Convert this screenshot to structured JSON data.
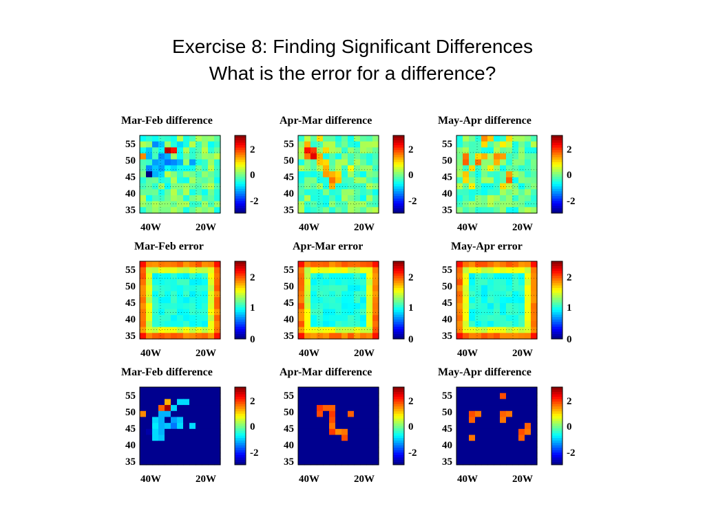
{
  "slide": {
    "title_line1": "Exercise 8: Finding Significant Differences",
    "title_line2": "What is the error for a difference?"
  },
  "colormap": "jet",
  "chart_data": [
    {
      "type": "heatmap",
      "title": "Mar-Feb difference",
      "ytick_labels": [
        "55",
        "50",
        "45",
        "40",
        "35"
      ],
      "xtick_labels": [
        "40W",
        "20W"
      ],
      "colorbar_ticks": [
        "2",
        "0",
        "-2"
      ],
      "background": "field",
      "anomalies": [
        {
          "r": 1,
          "c": 2,
          "v": -1.2
        },
        {
          "r": 1,
          "c": 3,
          "v": -0.9
        },
        {
          "r": 1,
          "c": 6,
          "v": -0.8
        },
        {
          "r": 2,
          "c": 1,
          "v": -0.9
        },
        {
          "r": 2,
          "c": 3,
          "v": -0.6
        },
        {
          "r": 2,
          "c": 4,
          "v": 2.2
        },
        {
          "r": 2,
          "c": 5,
          "v": 1.8
        },
        {
          "r": 3,
          "c": 0,
          "v": 1.2
        },
        {
          "r": 3,
          "c": 1,
          "v": -1.0
        },
        {
          "r": 3,
          "c": 3,
          "v": -1.2
        },
        {
          "r": 3,
          "c": 4,
          "v": -1.0
        },
        {
          "r": 4,
          "c": 2,
          "v": -1.1
        },
        {
          "r": 4,
          "c": 3,
          "v": -1.0
        },
        {
          "r": 4,
          "c": 4,
          "v": -1.3
        },
        {
          "r": 4,
          "c": 5,
          "v": -1.2
        },
        {
          "r": 4,
          "c": 6,
          "v": -1.0
        },
        {
          "r": 4,
          "c": 8,
          "v": -1.1
        },
        {
          "r": 5,
          "c": 1,
          "v": -1.2
        },
        {
          "r": 5,
          "c": 2,
          "v": -0.9
        },
        {
          "r": 5,
          "c": 3,
          "v": -1.1
        },
        {
          "r": 5,
          "c": 4,
          "v": -0.6
        },
        {
          "r": 5,
          "c": 5,
          "v": -0.8
        },
        {
          "r": 5,
          "c": 7,
          "v": -0.6
        },
        {
          "r": 6,
          "c": 1,
          "v": -2.5
        },
        {
          "r": 6,
          "c": 2,
          "v": -1.0
        },
        {
          "r": 6,
          "c": 3,
          "v": -0.8
        },
        {
          "r": 7,
          "c": 3,
          "v": -0.5
        },
        {
          "r": 7,
          "c": 4,
          "v": -0.4
        },
        {
          "r": 8,
          "c": 2,
          "v": -0.4
        }
      ]
    },
    {
      "type": "heatmap",
      "title": "Apr-Mar difference",
      "ytick_labels": [
        "55",
        "50",
        "45",
        "40",
        "35"
      ],
      "xtick_labels": [
        "40W",
        "20W"
      ],
      "colorbar_ticks": [
        "2",
        "-2",
        "0"
      ],
      "background": "field",
      "anomalies": [
        {
          "r": 0,
          "c": 3,
          "v": 0.8
        },
        {
          "r": 1,
          "c": 1,
          "v": 1.0
        },
        {
          "r": 2,
          "c": 1,
          "v": 1.8
        },
        {
          "r": 2,
          "c": 2,
          "v": 1.6
        },
        {
          "r": 2,
          "c": 4,
          "v": 0.8
        },
        {
          "r": 3,
          "c": 1,
          "v": 1.3
        },
        {
          "r": 3,
          "c": 2,
          "v": 2.0
        },
        {
          "r": 3,
          "c": 3,
          "v": 1.0
        },
        {
          "r": 4,
          "c": 3,
          "v": 0.9
        },
        {
          "r": 4,
          "c": 4,
          "v": 0.8
        },
        {
          "r": 5,
          "c": 4,
          "v": 1.0
        },
        {
          "r": 5,
          "c": 8,
          "v": 0.6
        },
        {
          "r": 6,
          "c": 4,
          "v": 1.1
        },
        {
          "r": 6,
          "c": 5,
          "v": 1.0
        },
        {
          "r": 6,
          "c": 6,
          "v": 0.8
        },
        {
          "r": 7,
          "c": 5,
          "v": 1.3
        },
        {
          "r": 7,
          "c": 6,
          "v": 0.9
        },
        {
          "r": 8,
          "c": 5,
          "v": 1.0
        },
        {
          "r": 2,
          "c": 7,
          "v": -0.4
        },
        {
          "r": 4,
          "c": 8,
          "v": -0.3
        },
        {
          "r": 8,
          "c": 8,
          "v": -0.3
        }
      ]
    },
    {
      "type": "heatmap",
      "title": "May-Apr difference",
      "ytick_labels": [
        "55",
        "50",
        "45",
        "40",
        "35"
      ],
      "xtick_labels": [
        "40W",
        "20W"
      ],
      "colorbar_ticks": [
        "2",
        "0",
        "-2"
      ],
      "background": "field",
      "anomalies": [
        {
          "r": 0,
          "c": 4,
          "v": 1.2
        },
        {
          "r": 0,
          "c": 5,
          "v": 0.9
        },
        {
          "r": 0,
          "c": 8,
          "v": 0.8
        },
        {
          "r": 1,
          "c": 4,
          "v": 0.8
        },
        {
          "r": 1,
          "c": 7,
          "v": 0.7
        },
        {
          "r": 3,
          "c": 1,
          "v": 1.3
        },
        {
          "r": 3,
          "c": 3,
          "v": 0.8
        },
        {
          "r": 3,
          "c": 4,
          "v": 1.0
        },
        {
          "r": 3,
          "c": 6,
          "v": 1.2
        },
        {
          "r": 3,
          "c": 7,
          "v": 1.1
        },
        {
          "r": 4,
          "c": 1,
          "v": 1.4
        },
        {
          "r": 4,
          "c": 3,
          "v": 1.3
        },
        {
          "r": 4,
          "c": 6,
          "v": 1.0
        },
        {
          "r": 5,
          "c": 2,
          "v": 0.8
        },
        {
          "r": 5,
          "c": 5,
          "v": 0.7
        },
        {
          "r": 6,
          "c": 1,
          "v": 0.9
        },
        {
          "r": 6,
          "c": 8,
          "v": 1.1
        },
        {
          "r": 7,
          "c": 1,
          "v": 0.8
        },
        {
          "r": 7,
          "c": 8,
          "v": 1.4
        },
        {
          "r": 8,
          "c": 2,
          "v": 0.7
        },
        {
          "r": 8,
          "c": 7,
          "v": 0.8
        }
      ]
    },
    {
      "type": "heatmap",
      "title": "Mar-Feb error",
      "ytick_labels": [
        "55",
        "50",
        "45",
        "40",
        "35"
      ],
      "xtick_labels": [
        "40W",
        "20W"
      ],
      "colorbar_ticks": [
        "2",
        "1",
        "0"
      ],
      "background": "error"
    },
    {
      "type": "heatmap",
      "title": "Apr-Mar error",
      "ytick_labels": [
        "55",
        "50",
        "45",
        "40",
        "35"
      ],
      "xtick_labels": [
        "40W",
        "20W"
      ],
      "colorbar_ticks": [
        "2",
        "1",
        "0"
      ],
      "background": "error"
    },
    {
      "type": "heatmap",
      "title": "May-Apr error",
      "ytick_labels": [
        "55",
        "50",
        "45",
        "40",
        "35"
      ],
      "xtick_labels": [
        "40W",
        "20W"
      ],
      "colorbar_ticks": [
        "2",
        "1",
        "0"
      ],
      "background": "error"
    },
    {
      "type": "heatmap",
      "title": "Mar-Feb difference",
      "ytick_labels": [
        "55",
        "50",
        "45",
        "40",
        "35"
      ],
      "xtick_labels": [
        "40W",
        "20W"
      ],
      "colorbar_ticks": [
        "2",
        "0",
        "-2"
      ],
      "background": "masked",
      "anomalies": [
        {
          "r": 2,
          "c": 4,
          "v": 1.0
        },
        {
          "r": 2,
          "c": 6,
          "v": -0.8
        },
        {
          "r": 2,
          "c": 7,
          "v": -0.8
        },
        {
          "r": 3,
          "c": 3,
          "v": 1.4
        },
        {
          "r": 3,
          "c": 4,
          "v": 2.3
        },
        {
          "r": 3,
          "c": 5,
          "v": -0.8
        },
        {
          "r": 4,
          "c": 0,
          "v": 1.2
        },
        {
          "r": 4,
          "c": 3,
          "v": -1.0
        },
        {
          "r": 4,
          "c": 4,
          "v": -1.0
        },
        {
          "r": 5,
          "c": 2,
          "v": -0.8
        },
        {
          "r": 5,
          "c": 3,
          "v": -1.0
        },
        {
          "r": 5,
          "c": 5,
          "v": -1.1
        },
        {
          "r": 5,
          "c": 6,
          "v": -0.9
        },
        {
          "r": 6,
          "c": 2,
          "v": -0.7
        },
        {
          "r": 6,
          "c": 3,
          "v": -1.0
        },
        {
          "r": 6,
          "c": 4,
          "v": -0.9
        },
        {
          "r": 6,
          "c": 5,
          "v": -1.3
        },
        {
          "r": 6,
          "c": 6,
          "v": -0.8
        },
        {
          "r": 6,
          "c": 8,
          "v": -0.8
        },
        {
          "r": 7,
          "c": 1,
          "v": -2.3
        },
        {
          "r": 7,
          "c": 2,
          "v": -0.8
        },
        {
          "r": 7,
          "c": 3,
          "v": -1.0
        },
        {
          "r": 8,
          "c": 2,
          "v": -0.8
        },
        {
          "r": 8,
          "c": 3,
          "v": -0.9
        }
      ]
    },
    {
      "type": "heatmap",
      "title": "Apr-Mar difference",
      "ytick_labels": [
        "55",
        "50",
        "45",
        "40",
        "35"
      ],
      "xtick_labels": [
        "40W",
        "20W"
      ],
      "colorbar_ticks": [
        "2",
        "0",
        "-2"
      ],
      "background": "masked",
      "anomalies": [
        {
          "r": 3,
          "c": 3,
          "v": 1.6
        },
        {
          "r": 3,
          "c": 4,
          "v": 1.4
        },
        {
          "r": 3,
          "c": 5,
          "v": 1.4
        },
        {
          "r": 4,
          "c": 3,
          "v": 1.5
        },
        {
          "r": 4,
          "c": 5,
          "v": 1.6
        },
        {
          "r": 5,
          "c": 5,
          "v": 1.5
        },
        {
          "r": 4,
          "c": 8,
          "v": 1.4
        },
        {
          "r": 6,
          "c": 5,
          "v": 1.3
        },
        {
          "r": 7,
          "c": 5,
          "v": 1.6
        },
        {
          "r": 7,
          "c": 6,
          "v": 1.2
        },
        {
          "r": 7,
          "c": 7,
          "v": 1.3
        },
        {
          "r": 8,
          "c": 7,
          "v": 1.5
        }
      ]
    },
    {
      "type": "heatmap",
      "title": "May-Apr difference",
      "ytick_labels": [
        "55",
        "50",
        "45",
        "40",
        "35"
      ],
      "xtick_labels": [
        "40W",
        "20W"
      ],
      "colorbar_ticks": [
        "2",
        "0",
        "-2"
      ],
      "background": "masked",
      "anomalies": [
        {
          "r": 1,
          "c": 7,
          "v": 1.5
        },
        {
          "r": 4,
          "c": 2,
          "v": 1.5
        },
        {
          "r": 4,
          "c": 3,
          "v": 1.3
        },
        {
          "r": 4,
          "c": 7,
          "v": 1.4
        },
        {
          "r": 4,
          "c": 8,
          "v": 1.3
        },
        {
          "r": 5,
          "c": 2,
          "v": 1.4
        },
        {
          "r": 5,
          "c": 7,
          "v": 1.3
        },
        {
          "r": 6,
          "c": 11,
          "v": 1.4
        },
        {
          "r": 7,
          "c": 10,
          "v": 1.5
        },
        {
          "r": 7,
          "c": 11,
          "v": 1.3
        },
        {
          "r": 8,
          "c": 10,
          "v": 1.4
        },
        {
          "r": 8,
          "c": 2,
          "v": 1.3
        }
      ]
    }
  ]
}
